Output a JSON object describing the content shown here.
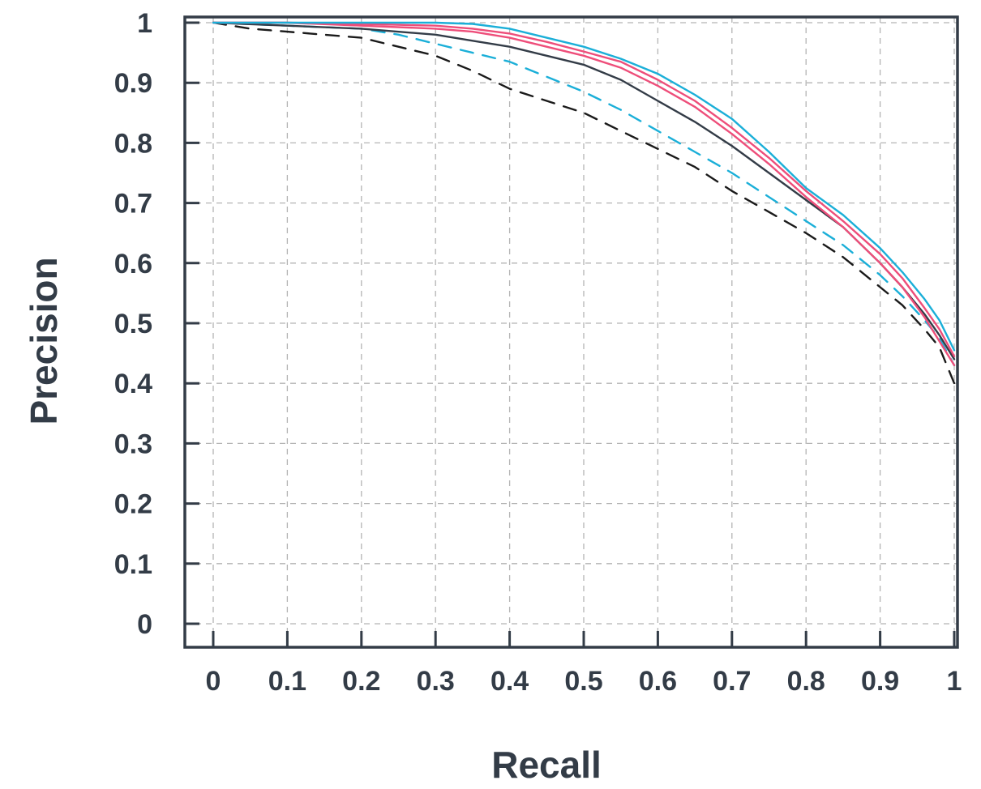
{
  "chart_data": {
    "type": "line",
    "xlabel": "Recall",
    "ylabel": "Precision",
    "xlim": [
      0,
      1
    ],
    "ylim": [
      0,
      1
    ],
    "grid": true,
    "x_ticks": [
      "0",
      "0.1",
      "0.2",
      "0.3",
      "0.4",
      "0.5",
      "0.6",
      "0.7",
      "0.8",
      "0.9",
      "1"
    ],
    "y_ticks": [
      "0",
      "0.1",
      "0.2",
      "0.3",
      "0.4",
      "0.5",
      "0.6",
      "0.7",
      "0.8",
      "0.9",
      "1"
    ],
    "series": [
      {
        "color": "#1a1a1a",
        "style": "dashed",
        "points": [
          [
            0.0,
            1.0
          ],
          [
            0.05,
            0.99
          ],
          [
            0.1,
            0.985
          ],
          [
            0.2,
            0.975
          ],
          [
            0.25,
            0.96
          ],
          [
            0.3,
            0.945
          ],
          [
            0.35,
            0.92
          ],
          [
            0.4,
            0.89
          ],
          [
            0.45,
            0.87
          ],
          [
            0.5,
            0.85
          ],
          [
            0.55,
            0.82
          ],
          [
            0.6,
            0.79
          ],
          [
            0.65,
            0.76
          ],
          [
            0.7,
            0.72
          ],
          [
            0.75,
            0.685
          ],
          [
            0.8,
            0.65
          ],
          [
            0.85,
            0.61
          ],
          [
            0.9,
            0.56
          ],
          [
            0.93,
            0.53
          ],
          [
            0.96,
            0.49
          ],
          [
            0.98,
            0.46
          ],
          [
            1.0,
            0.4
          ]
        ]
      },
      {
        "color": "#1bafd8",
        "style": "dashed",
        "points": [
          [
            0.0,
            1.0
          ],
          [
            0.1,
            0.995
          ],
          [
            0.2,
            0.99
          ],
          [
            0.25,
            0.98
          ],
          [
            0.3,
            0.965
          ],
          [
            0.35,
            0.95
          ],
          [
            0.4,
            0.935
          ],
          [
            0.45,
            0.91
          ],
          [
            0.5,
            0.885
          ],
          [
            0.55,
            0.855
          ],
          [
            0.6,
            0.82
          ],
          [
            0.65,
            0.785
          ],
          [
            0.7,
            0.75
          ],
          [
            0.75,
            0.71
          ],
          [
            0.8,
            0.67
          ],
          [
            0.85,
            0.63
          ],
          [
            0.9,
            0.58
          ],
          [
            0.93,
            0.545
          ],
          [
            0.96,
            0.505
          ],
          [
            0.98,
            0.475
          ],
          [
            1.0,
            0.43
          ]
        ]
      },
      {
        "color": "#333c47",
        "style": "solid",
        "points": [
          [
            0.0,
            1.0
          ],
          [
            0.1,
            0.995
          ],
          [
            0.2,
            0.99
          ],
          [
            0.3,
            0.98
          ],
          [
            0.35,
            0.97
          ],
          [
            0.4,
            0.96
          ],
          [
            0.45,
            0.945
          ],
          [
            0.5,
            0.93
          ],
          [
            0.55,
            0.905
          ],
          [
            0.6,
            0.87
          ],
          [
            0.65,
            0.835
          ],
          [
            0.7,
            0.795
          ],
          [
            0.75,
            0.75
          ],
          [
            0.8,
            0.705
          ],
          [
            0.85,
            0.66
          ],
          [
            0.9,
            0.6
          ],
          [
            0.93,
            0.56
          ],
          [
            0.96,
            0.515
          ],
          [
            0.98,
            0.48
          ],
          [
            1.0,
            0.44
          ]
        ]
      },
      {
        "color": "#ee4e7a",
        "style": "solid",
        "points": [
          [
            0.0,
            1.0
          ],
          [
            0.1,
            1.0
          ],
          [
            0.2,
            0.995
          ],
          [
            0.3,
            0.99
          ],
          [
            0.35,
            0.985
          ],
          [
            0.4,
            0.975
          ],
          [
            0.45,
            0.96
          ],
          [
            0.5,
            0.945
          ],
          [
            0.55,
            0.925
          ],
          [
            0.6,
            0.895
          ],
          [
            0.65,
            0.86
          ],
          [
            0.7,
            0.815
          ],
          [
            0.75,
            0.765
          ],
          [
            0.8,
            0.71
          ],
          [
            0.85,
            0.66
          ],
          [
            0.9,
            0.6
          ],
          [
            0.93,
            0.56
          ],
          [
            0.96,
            0.51
          ],
          [
            0.98,
            0.47
          ],
          [
            1.0,
            0.43
          ]
        ]
      },
      {
        "color": "#ee4e7a",
        "style": "solid",
        "points": [
          [
            0.0,
            1.0
          ],
          [
            0.1,
            1.0
          ],
          [
            0.2,
            0.998
          ],
          [
            0.3,
            0.995
          ],
          [
            0.35,
            0.99
          ],
          [
            0.4,
            0.982
          ],
          [
            0.45,
            0.968
          ],
          [
            0.5,
            0.952
          ],
          [
            0.55,
            0.935
          ],
          [
            0.6,
            0.905
          ],
          [
            0.65,
            0.87
          ],
          [
            0.7,
            0.825
          ],
          [
            0.75,
            0.775
          ],
          [
            0.8,
            0.72
          ],
          [
            0.85,
            0.67
          ],
          [
            0.9,
            0.615
          ],
          [
            0.93,
            0.575
          ],
          [
            0.96,
            0.525
          ],
          [
            0.98,
            0.49
          ],
          [
            1.0,
            0.445
          ]
        ]
      },
      {
        "color": "#1bafd8",
        "style": "solid",
        "points": [
          [
            0.0,
            1.0
          ],
          [
            0.1,
            1.0
          ],
          [
            0.2,
            1.0
          ],
          [
            0.3,
            1.0
          ],
          [
            0.35,
            0.998
          ],
          [
            0.4,
            0.99
          ],
          [
            0.45,
            0.975
          ],
          [
            0.5,
            0.96
          ],
          [
            0.55,
            0.94
          ],
          [
            0.6,
            0.915
          ],
          [
            0.65,
            0.88
          ],
          [
            0.7,
            0.84
          ],
          [
            0.75,
            0.785
          ],
          [
            0.8,
            0.725
          ],
          [
            0.85,
            0.68
          ],
          [
            0.9,
            0.625
          ],
          [
            0.93,
            0.585
          ],
          [
            0.96,
            0.54
          ],
          [
            0.98,
            0.505
          ],
          [
            1.0,
            0.455
          ]
        ]
      }
    ]
  }
}
